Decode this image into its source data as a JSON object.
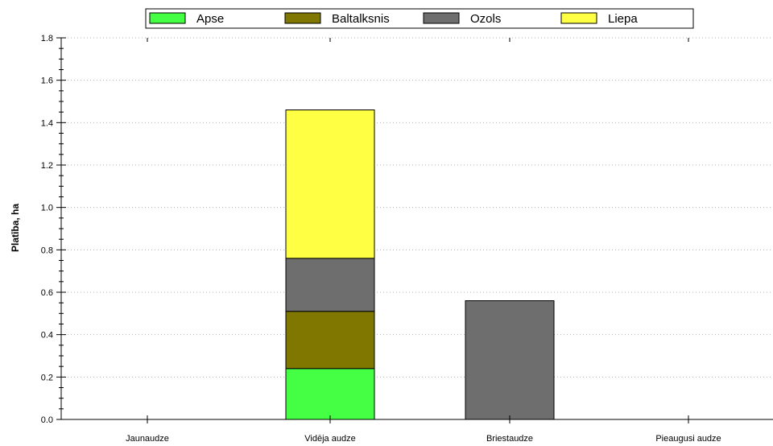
{
  "chart_data": {
    "type": "bar",
    "stacked": true,
    "title": "",
    "xlabel": "",
    "ylabel": "Platība, ha",
    "ylim": [
      0,
      1.8
    ],
    "yticks": [
      "0.0",
      "0.2",
      "0.4",
      "0.6",
      "0.8",
      "1.0",
      "1.2",
      "1.4",
      "1.6",
      "1.8"
    ],
    "categories": [
      "Jaunaudze",
      "Vidēja audze",
      "Briestaudze",
      "Pieaugusi audze"
    ],
    "series": [
      {
        "name": "Apse",
        "color": "#44ff44",
        "values": [
          0,
          0.24,
          0,
          0
        ]
      },
      {
        "name": "Baltalksnis",
        "color": "#7f7700",
        "values": [
          0,
          0.27,
          0,
          0
        ]
      },
      {
        "name": "Ozols",
        "color": "#6e6e6e",
        "values": [
          0,
          0.25,
          0.56,
          0
        ]
      },
      {
        "name": "Liepa",
        "color": "#ffff44",
        "values": [
          0,
          0.7,
          0,
          0
        ]
      }
    ],
    "grid": "horizontal-dotted",
    "legend_position": "top"
  }
}
